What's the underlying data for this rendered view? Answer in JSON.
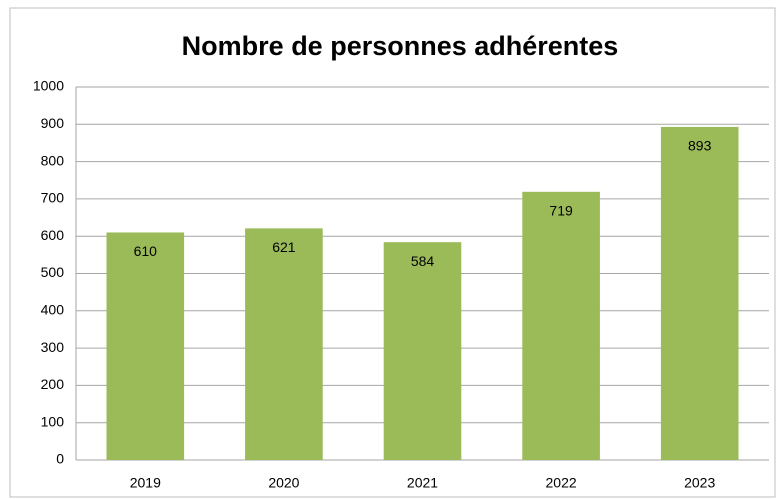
{
  "chart_data": {
    "type": "bar",
    "title": "Nombre de personnes adhérentes",
    "categories": [
      "2019",
      "2020",
      "2021",
      "2022",
      "2023"
    ],
    "values": [
      610,
      621,
      584,
      719,
      893
    ],
    "color": "#9bbb59",
    "ylim": [
      0,
      1000
    ],
    "yticks": [
      0,
      100,
      200,
      300,
      400,
      500,
      600,
      700,
      800,
      900,
      1000
    ],
    "grid": true
  }
}
